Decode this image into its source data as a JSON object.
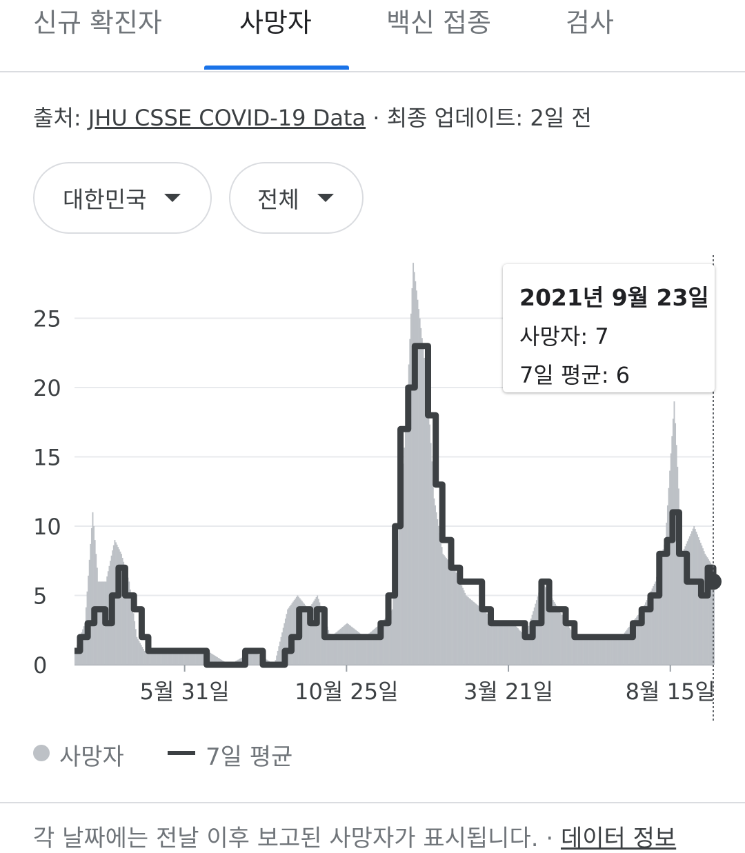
{
  "tabs": [
    {
      "label": "신규 확진자",
      "active": false
    },
    {
      "label": "사망자",
      "active": true
    },
    {
      "label": "백신 접종",
      "active": false
    },
    {
      "label": "검사",
      "active": false
    }
  ],
  "source": {
    "prefix": "출처: ",
    "link_text": "JHU CSSE COVID-19 Data",
    "suffix": " · 최종 업데이트: 2일 전"
  },
  "filters": {
    "region": "대한민국",
    "scope": "전체"
  },
  "tooltip": {
    "date": "2021년 9월 23일",
    "deaths": "사망자: 7",
    "avg": "7일 평균: 6"
  },
  "legend": {
    "daily": "사망자",
    "avg": "7일 평균"
  },
  "footer": {
    "text": "각 날짜에는 전날 이후 보고된 사망자가 표시됩니다. · ",
    "link": "데이터 정보"
  },
  "colors": {
    "bars": "#bdc1c6",
    "average_line": "#3c4043",
    "tab_indicator": "#1a73e8",
    "grid": "#e8eaed"
  },
  "chart_data": {
    "type": "bar",
    "title": "",
    "xlabel": "",
    "ylabel": "",
    "ylim": [
      0,
      29
    ],
    "yticks": [
      0,
      5,
      10,
      15,
      20,
      25
    ],
    "xtick_labels": [
      "5월 31일",
      "10월 25일",
      "3월 21일",
      "8월 15일"
    ],
    "x_range": [
      "2020-02-21",
      "2021-09-23"
    ],
    "selected_date": "2021-09-23",
    "series": [
      {
        "name": "사망자",
        "kind": "bar",
        "points": [
          [
            "2020-02-21",
            1
          ],
          [
            "2020-03-01",
            3
          ],
          [
            "2020-03-08",
            11
          ],
          [
            "2020-03-13",
            6
          ],
          [
            "2020-03-20",
            6
          ],
          [
            "2020-03-28",
            9
          ],
          [
            "2020-04-03",
            8
          ],
          [
            "2020-04-10",
            6
          ],
          [
            "2020-04-17",
            2
          ],
          [
            "2020-04-24",
            1
          ],
          [
            "2020-05-10",
            1
          ],
          [
            "2020-06-01",
            1
          ],
          [
            "2020-06-20",
            1
          ],
          [
            "2020-07-10",
            0
          ],
          [
            "2020-08-01",
            1
          ],
          [
            "2020-08-20",
            0
          ],
          [
            "2020-09-01",
            4
          ],
          [
            "2020-09-10",
            5
          ],
          [
            "2020-09-20",
            4
          ],
          [
            "2020-09-28",
            5
          ],
          [
            "2020-10-10",
            2
          ],
          [
            "2020-10-25",
            3
          ],
          [
            "2020-11-10",
            2
          ],
          [
            "2020-11-25",
            3
          ],
          [
            "2020-12-05",
            4
          ],
          [
            "2020-12-12",
            11
          ],
          [
            "2020-12-18",
            18
          ],
          [
            "2020-12-24",
            29
          ],
          [
            "2020-12-30",
            25
          ],
          [
            "2021-01-06",
            20
          ],
          [
            "2021-01-12",
            12
          ],
          [
            "2021-01-20",
            8
          ],
          [
            "2021-01-30",
            7
          ],
          [
            "2021-02-10",
            5
          ],
          [
            "2021-02-25",
            4
          ],
          [
            "2021-03-10",
            3
          ],
          [
            "2021-03-25",
            3
          ],
          [
            "2021-04-05",
            2
          ],
          [
            "2021-04-20",
            6
          ],
          [
            "2021-05-05",
            4
          ],
          [
            "2021-05-20",
            2
          ],
          [
            "2021-06-10",
            2
          ],
          [
            "2021-07-01",
            2
          ],
          [
            "2021-07-20",
            4
          ],
          [
            "2021-08-01",
            6
          ],
          [
            "2021-08-10",
            9
          ],
          [
            "2021-08-18",
            19
          ],
          [
            "2021-08-25",
            8
          ],
          [
            "2021-09-05",
            10
          ],
          [
            "2021-09-15",
            8
          ],
          [
            "2021-09-23",
            7
          ]
        ]
      },
      {
        "name": "7일 평균",
        "kind": "line",
        "points": [
          [
            "2020-02-21",
            1
          ],
          [
            "2020-02-26",
            2
          ],
          [
            "2020-03-04",
            3
          ],
          [
            "2020-03-10",
            4
          ],
          [
            "2020-03-20",
            3
          ],
          [
            "2020-03-26",
            5
          ],
          [
            "2020-04-01",
            7
          ],
          [
            "2020-04-07",
            5
          ],
          [
            "2020-04-15",
            4
          ],
          [
            "2020-04-22",
            2
          ],
          [
            "2020-04-28",
            1
          ],
          [
            "2020-06-10",
            1
          ],
          [
            "2020-06-20",
            0
          ],
          [
            "2020-07-15",
            0
          ],
          [
            "2020-07-25",
            1
          ],
          [
            "2020-08-05",
            1
          ],
          [
            "2020-08-10",
            0
          ],
          [
            "2020-08-25",
            0
          ],
          [
            "2020-08-30",
            1
          ],
          [
            "2020-09-05",
            2
          ],
          [
            "2020-09-12",
            4
          ],
          [
            "2020-09-22",
            3
          ],
          [
            "2020-09-28",
            4
          ],
          [
            "2020-10-05",
            2
          ],
          [
            "2020-10-15",
            2
          ],
          [
            "2020-11-15",
            2
          ],
          [
            "2020-11-25",
            3
          ],
          [
            "2020-12-02",
            5
          ],
          [
            "2020-12-08",
            10
          ],
          [
            "2020-12-13",
            17
          ],
          [
            "2020-12-20",
            20
          ],
          [
            "2020-12-26",
            23
          ],
          [
            "2021-01-01",
            23
          ],
          [
            "2021-01-07",
            18
          ],
          [
            "2021-01-14",
            13
          ],
          [
            "2021-01-20",
            9
          ],
          [
            "2021-01-28",
            7
          ],
          [
            "2021-02-05",
            6
          ],
          [
            "2021-02-15",
            6
          ],
          [
            "2021-02-25",
            4
          ],
          [
            "2021-03-05",
            3
          ],
          [
            "2021-03-15",
            3
          ],
          [
            "2021-03-25",
            3
          ],
          [
            "2021-04-05",
            2
          ],
          [
            "2021-04-12",
            3
          ],
          [
            "2021-04-20",
            6
          ],
          [
            "2021-04-27",
            4
          ],
          [
            "2021-05-05",
            4
          ],
          [
            "2021-05-12",
            3
          ],
          [
            "2021-05-20",
            2
          ],
          [
            "2021-07-05",
            2
          ],
          [
            "2021-07-12",
            3
          ],
          [
            "2021-07-20",
            4
          ],
          [
            "2021-07-28",
            5
          ],
          [
            "2021-08-05",
            8
          ],
          [
            "2021-08-12",
            9
          ],
          [
            "2021-08-17",
            11
          ],
          [
            "2021-08-23",
            8
          ],
          [
            "2021-08-30",
            6
          ],
          [
            "2021-09-06",
            6
          ],
          [
            "2021-09-12",
            5
          ],
          [
            "2021-09-18",
            7
          ],
          [
            "2021-09-23",
            6
          ]
        ]
      }
    ]
  }
}
